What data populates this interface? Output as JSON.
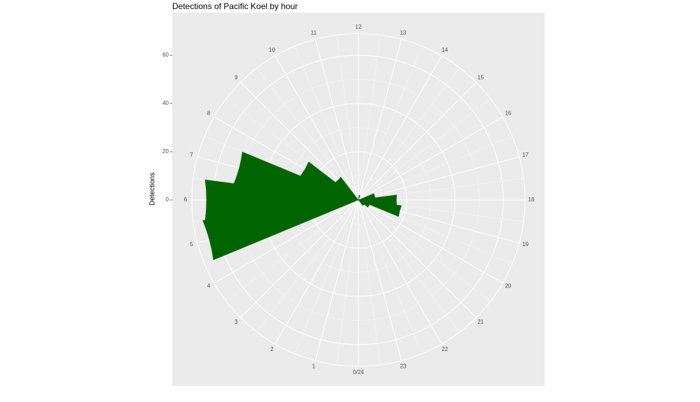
{
  "chart_data": {
    "type": "bar",
    "coord": "polar",
    "title": "Detections of Pacific Koel by hour",
    "xlabel": "",
    "ylabel": "Detections",
    "categories": [
      0,
      1,
      2,
      3,
      4,
      5,
      6,
      7,
      8,
      9,
      10,
      11,
      12,
      13,
      14,
      15,
      16,
      17,
      18,
      19,
      20,
      21,
      22,
      23
    ],
    "hour_labels": [
      "0/24",
      "1",
      "2",
      "3",
      "4",
      "5",
      "6",
      "7",
      "8",
      "9",
      "10",
      "11",
      "12",
      "13",
      "14",
      "15",
      "16",
      "17",
      "18",
      "19",
      "20",
      "21",
      "22",
      "23"
    ],
    "values": [
      0,
      0,
      0,
      0,
      0,
      65,
      64,
      52,
      26,
      12,
      0,
      0,
      0,
      2,
      0,
      0,
      0,
      7,
      16,
      18,
      5,
      3,
      0,
      0
    ],
    "ylim": [
      0,
      69
    ],
    "y_ticks": [
      0,
      20,
      40,
      60
    ],
    "bar_color": "#006400",
    "panel_color": "#ebebeb",
    "grid": true,
    "legend": "none"
  }
}
